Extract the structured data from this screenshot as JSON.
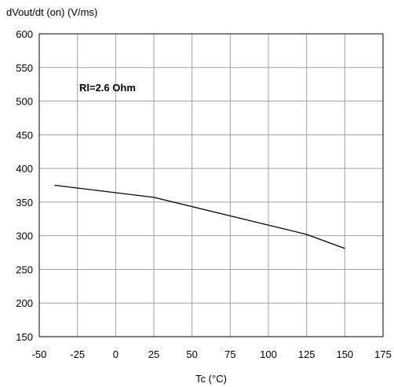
{
  "chart_data": {
    "type": "line",
    "title": "",
    "ylabel": "dVout/dt (on) (V/ms)",
    "xlabel": "Tc (°C)",
    "annotation": "Rl=2.6 Ohm",
    "xlim": [
      -50,
      175
    ],
    "ylim": [
      150,
      600
    ],
    "xticks": [
      -50,
      -25,
      0,
      25,
      50,
      75,
      100,
      125,
      150,
      175
    ],
    "yticks": [
      150,
      200,
      250,
      300,
      350,
      400,
      450,
      500,
      550,
      600
    ],
    "grid": true,
    "series": [
      {
        "x": [
          -40,
          25,
          125,
          150
        ],
        "y": [
          375,
          357,
          302,
          281
        ]
      }
    ],
    "colors": {
      "line": "#000000",
      "grid": "#a0a0a0",
      "frame": "#000000"
    }
  }
}
